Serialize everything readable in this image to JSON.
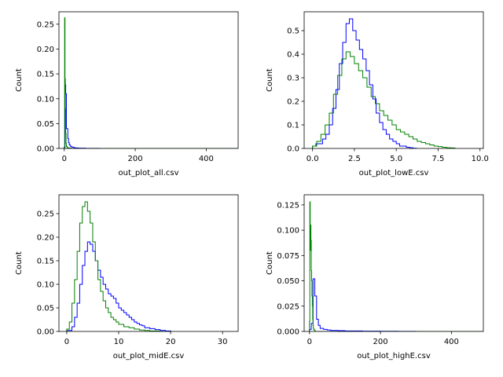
{
  "chart_data": [
    {
      "type": "histogram",
      "xlabel": "out_plot_all.csv",
      "ylabel": "Count",
      "xlim": [
        -15,
        490
      ],
      "ylim": [
        0,
        0.275
      ],
      "xticks": [
        0,
        200,
        400
      ],
      "yticks": [
        0.0,
        0.05,
        0.1,
        0.15,
        0.2,
        0.25
      ],
      "series": [
        {
          "color": "#0000ff",
          "x": [
            0,
            2,
            4,
            6,
            8,
            10,
            12,
            14,
            16,
            18,
            20,
            25,
            30,
            40,
            60,
            100,
            150,
            490
          ],
          "values": [
            0.002,
            0.128,
            0.11,
            0.04,
            0.04,
            0.02,
            0.012,
            0.008,
            0.006,
            0.004,
            0.003,
            0.002,
            0.001,
            0.0005,
            0.0002,
            0.0001,
            0.0
          ]
        },
        {
          "color": "#008000",
          "x": [
            0,
            1,
            2,
            3,
            4,
            5,
            6,
            8,
            10,
            14,
            20,
            490
          ],
          "values": [
            0.003,
            0.263,
            0.14,
            0.08,
            0.03,
            0.01,
            0.004,
            0.002,
            0.001,
            0.0005,
            0.0
          ]
        }
      ]
    },
    {
      "type": "histogram",
      "xlabel": "out_plot_lowE.csv",
      "ylabel": "Count",
      "xlim": [
        -0.5,
        10.2
      ],
      "ylim": [
        0,
        0.58
      ],
      "xticks": [
        0.0,
        2.5,
        5.0,
        7.5,
        10.0
      ],
      "yticks": [
        0.0,
        0.1,
        0.2,
        0.3,
        0.4,
        0.5
      ],
      "series": [
        {
          "color": "#0000ff",
          "x": [
            0.0,
            0.2,
            0.4,
            0.6,
            0.8,
            1.0,
            1.2,
            1.4,
            1.6,
            1.8,
            2.0,
            2.2,
            2.4,
            2.6,
            2.8,
            3.0,
            3.2,
            3.4,
            3.6,
            3.8,
            4.0,
            4.2,
            4.4,
            4.6,
            4.8,
            5.0,
            5.2,
            5.4,
            5.6,
            5.8,
            6.0,
            6.2
          ],
          "values": [
            0.01,
            0.02,
            0.02,
            0.04,
            0.06,
            0.1,
            0.17,
            0.25,
            0.36,
            0.45,
            0.53,
            0.55,
            0.5,
            0.46,
            0.42,
            0.38,
            0.33,
            0.27,
            0.21,
            0.15,
            0.11,
            0.08,
            0.06,
            0.04,
            0.03,
            0.02,
            0.01,
            0.01,
            0.005,
            0.003,
            0.001
          ]
        },
        {
          "color": "#008000",
          "x": [
            0.0,
            0.25,
            0.5,
            0.75,
            1.0,
            1.25,
            1.5,
            1.75,
            2.0,
            2.25,
            2.5,
            2.75,
            3.0,
            3.25,
            3.5,
            3.75,
            4.0,
            4.25,
            4.5,
            4.75,
            5.0,
            5.25,
            5.5,
            5.75,
            6.0,
            6.25,
            6.5,
            6.75,
            7.0,
            7.25,
            7.5,
            7.75,
            8.0,
            8.25,
            8.5
          ],
          "values": [
            0.01,
            0.03,
            0.06,
            0.1,
            0.15,
            0.23,
            0.31,
            0.38,
            0.41,
            0.39,
            0.36,
            0.33,
            0.3,
            0.26,
            0.22,
            0.19,
            0.16,
            0.14,
            0.12,
            0.1,
            0.08,
            0.07,
            0.06,
            0.05,
            0.04,
            0.03,
            0.025,
            0.02,
            0.015,
            0.01,
            0.008,
            0.005,
            0.003,
            0.002
          ]
        }
      ]
    },
    {
      "type": "histogram",
      "xlabel": "out_plot_midE.csv",
      "ylabel": "Count",
      "xlim": [
        -1.5,
        33
      ],
      "ylim": [
        0,
        0.29
      ],
      "xticks": [
        0,
        10,
        20,
        30
      ],
      "yticks": [
        0.0,
        0.05,
        0.1,
        0.15,
        0.2,
        0.25
      ],
      "series": [
        {
          "color": "#0000ff",
          "x": [
            0,
            1,
            1.5,
            2,
            2.5,
            3,
            3.5,
            4,
            4.5,
            5,
            5.5,
            6,
            6.5,
            7,
            7.5,
            8,
            8.5,
            9,
            9.5,
            10,
            10.5,
            11,
            11.5,
            12,
            12.5,
            13,
            13.5,
            14,
            14.5,
            15,
            16,
            17,
            18,
            19,
            20
          ],
          "values": [
            0.002,
            0.01,
            0.03,
            0.06,
            0.1,
            0.14,
            0.17,
            0.19,
            0.185,
            0.17,
            0.15,
            0.13,
            0.115,
            0.1,
            0.09,
            0.08,
            0.075,
            0.07,
            0.06,
            0.05,
            0.045,
            0.04,
            0.035,
            0.03,
            0.025,
            0.02,
            0.017,
            0.014,
            0.012,
            0.008,
            0.006,
            0.004,
            0.002,
            0.001
          ]
        },
        {
          "color": "#008000",
          "x": [
            0,
            0.5,
            1,
            1.5,
            2,
            2.5,
            3,
            3.5,
            4,
            4.5,
            5,
            5.5,
            6,
            6.5,
            7,
            7.5,
            8,
            8.5,
            9,
            9.5,
            10,
            11,
            12,
            13,
            14,
            15,
            16,
            17,
            18,
            20
          ],
          "values": [
            0.005,
            0.02,
            0.06,
            0.11,
            0.17,
            0.23,
            0.265,
            0.275,
            0.255,
            0.23,
            0.19,
            0.15,
            0.11,
            0.085,
            0.065,
            0.05,
            0.04,
            0.03,
            0.025,
            0.02,
            0.015,
            0.01,
            0.008,
            0.005,
            0.003,
            0.002,
            0.001,
            0.001,
            0.0
          ]
        }
      ]
    },
    {
      "type": "histogram",
      "xlabel": "out_plot_highE.csv",
      "ylabel": "Count",
      "xlim": [
        -15,
        490
      ],
      "ylim": [
        0,
        0.135
      ],
      "xticks": [
        0,
        200,
        400
      ],
      "yticks": [
        0.0,
        0.025,
        0.05,
        0.075,
        0.1,
        0.125
      ],
      "series": [
        {
          "color": "#0000ff",
          "x": [
            0,
            5,
            10,
            15,
            20,
            25,
            30,
            40,
            50,
            60,
            80,
            100,
            150,
            200,
            250,
            300,
            490
          ],
          "values": [
            0.002,
            0.008,
            0.052,
            0.035,
            0.012,
            0.006,
            0.003,
            0.002,
            0.0015,
            0.001,
            0.0008,
            0.0005,
            0.0003,
            0.0002,
            0.0001,
            0.0
          ]
        },
        {
          "color": "#008000",
          "x": [
            0,
            1,
            2,
            3,
            4,
            5,
            6,
            7,
            8,
            9,
            10,
            11,
            12,
            14,
            16,
            490
          ],
          "values": [
            0.01,
            0.128,
            0.08,
            0.105,
            0.09,
            0.06,
            0.05,
            0.035,
            0.025,
            0.012,
            0.006,
            0.003,
            0.002,
            0.001,
            0.0
          ]
        }
      ]
    }
  ]
}
